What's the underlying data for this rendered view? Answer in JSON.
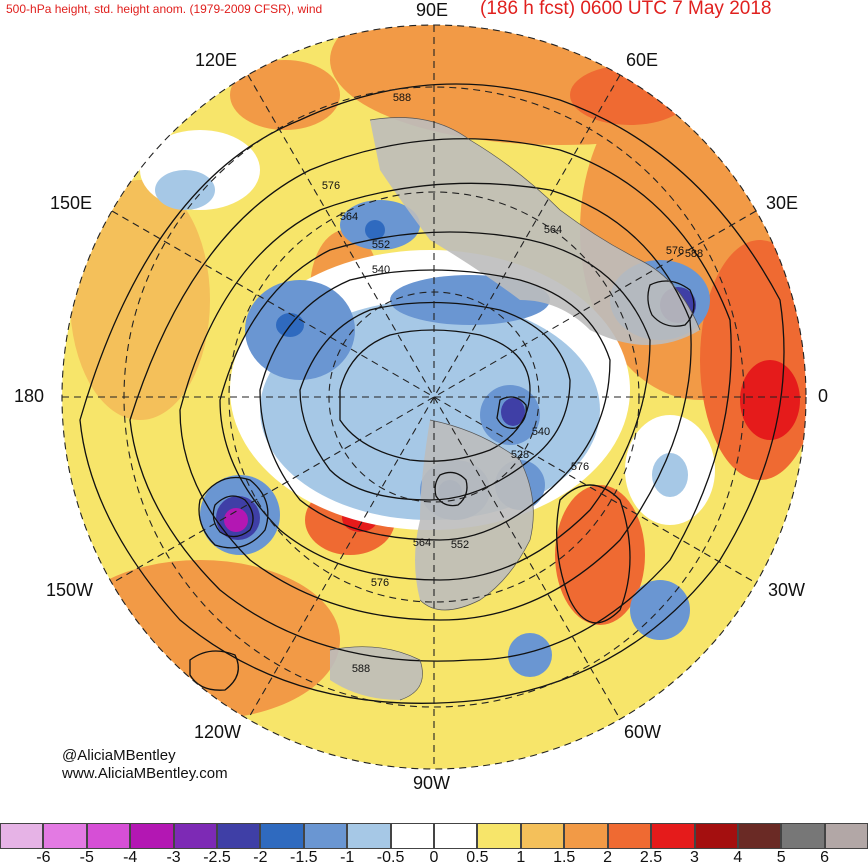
{
  "header": {
    "product": "500-hPa height, std. height anom. (1979-2009 CFSR), wind",
    "forecast": "(186 h fcst) 0600 UTC 7 May 2018"
  },
  "map": {
    "projection": "north-polar-stereographic",
    "longitude_labels": {
      "deg90E": "90E",
      "deg60E": "60E",
      "deg30E": "30E",
      "deg0": "0",
      "deg30W": "30W",
      "deg60W": "60W",
      "deg90W": "90W",
      "deg120W": "120W",
      "deg150W": "150W",
      "deg180": "180",
      "deg150E": "150E",
      "deg120E": "120E"
    },
    "contour_labels": [
      "588",
      "576",
      "564",
      "552",
      "540",
      "564",
      "576",
      "588",
      "540",
      "528",
      "576",
      "564",
      "552",
      "576",
      "588"
    ],
    "colors": {
      "ocean_base": "#ffffff",
      "land": "#bdbdbd",
      "contour": "#111111",
      "coast": "#555555"
    }
  },
  "credits": {
    "handle": "@AliciaMBentley",
    "website": "www.AliciaMBentley.com"
  },
  "colorbar": {
    "colors": [
      "#e6b3e6",
      "#e37ae3",
      "#d64fd6",
      "#b317b3",
      "#7d2ab5",
      "#3f3fa6",
      "#2f6abf",
      "#6a96d2",
      "#a6c8e6",
      "#ffffff",
      "#ffffff",
      "#f7e56a",
      "#f4c05a",
      "#f29a46",
      "#ef6a32",
      "#e51b1b",
      "#a40f0f",
      "#6a2a25",
      "#777777",
      "#b2a7a6"
    ],
    "ticks": [
      "-6",
      "-5",
      "-4",
      "-3",
      "-2.5",
      "-2",
      "-1.5",
      "-1",
      "-0.5",
      "0",
      "0.5",
      "1",
      "1.5",
      "2",
      "2.5",
      "3",
      "4",
      "5",
      "6"
    ]
  }
}
